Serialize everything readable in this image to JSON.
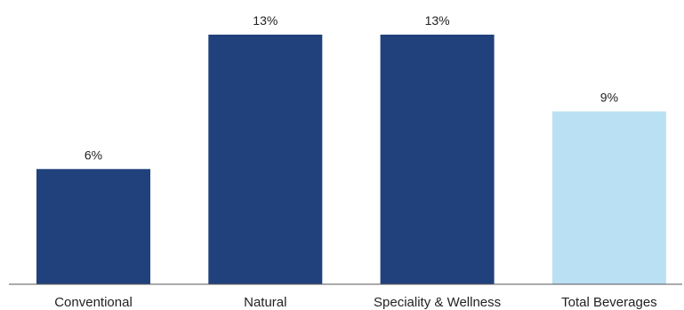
{
  "chart_data": {
    "type": "bar",
    "categories": [
      "Conventional",
      "Natural",
      "Speciality & Wellness",
      "Total Beverages"
    ],
    "values": [
      6,
      13,
      13,
      9
    ],
    "value_labels": [
      "6%",
      "13%",
      "13%",
      "9%"
    ],
    "title": "",
    "xlabel": "",
    "ylabel": "",
    "ylim": [
      0,
      13
    ],
    "grid": false,
    "legend": "none",
    "colors": [
      "#21417d",
      "#21417d",
      "#21417d",
      "#b9e0f3"
    ]
  },
  "colors": {
    "bar_primary": "#21417d",
    "bar_highlight": "#b9e0f3",
    "axis": "#555555",
    "text": "#222222"
  }
}
